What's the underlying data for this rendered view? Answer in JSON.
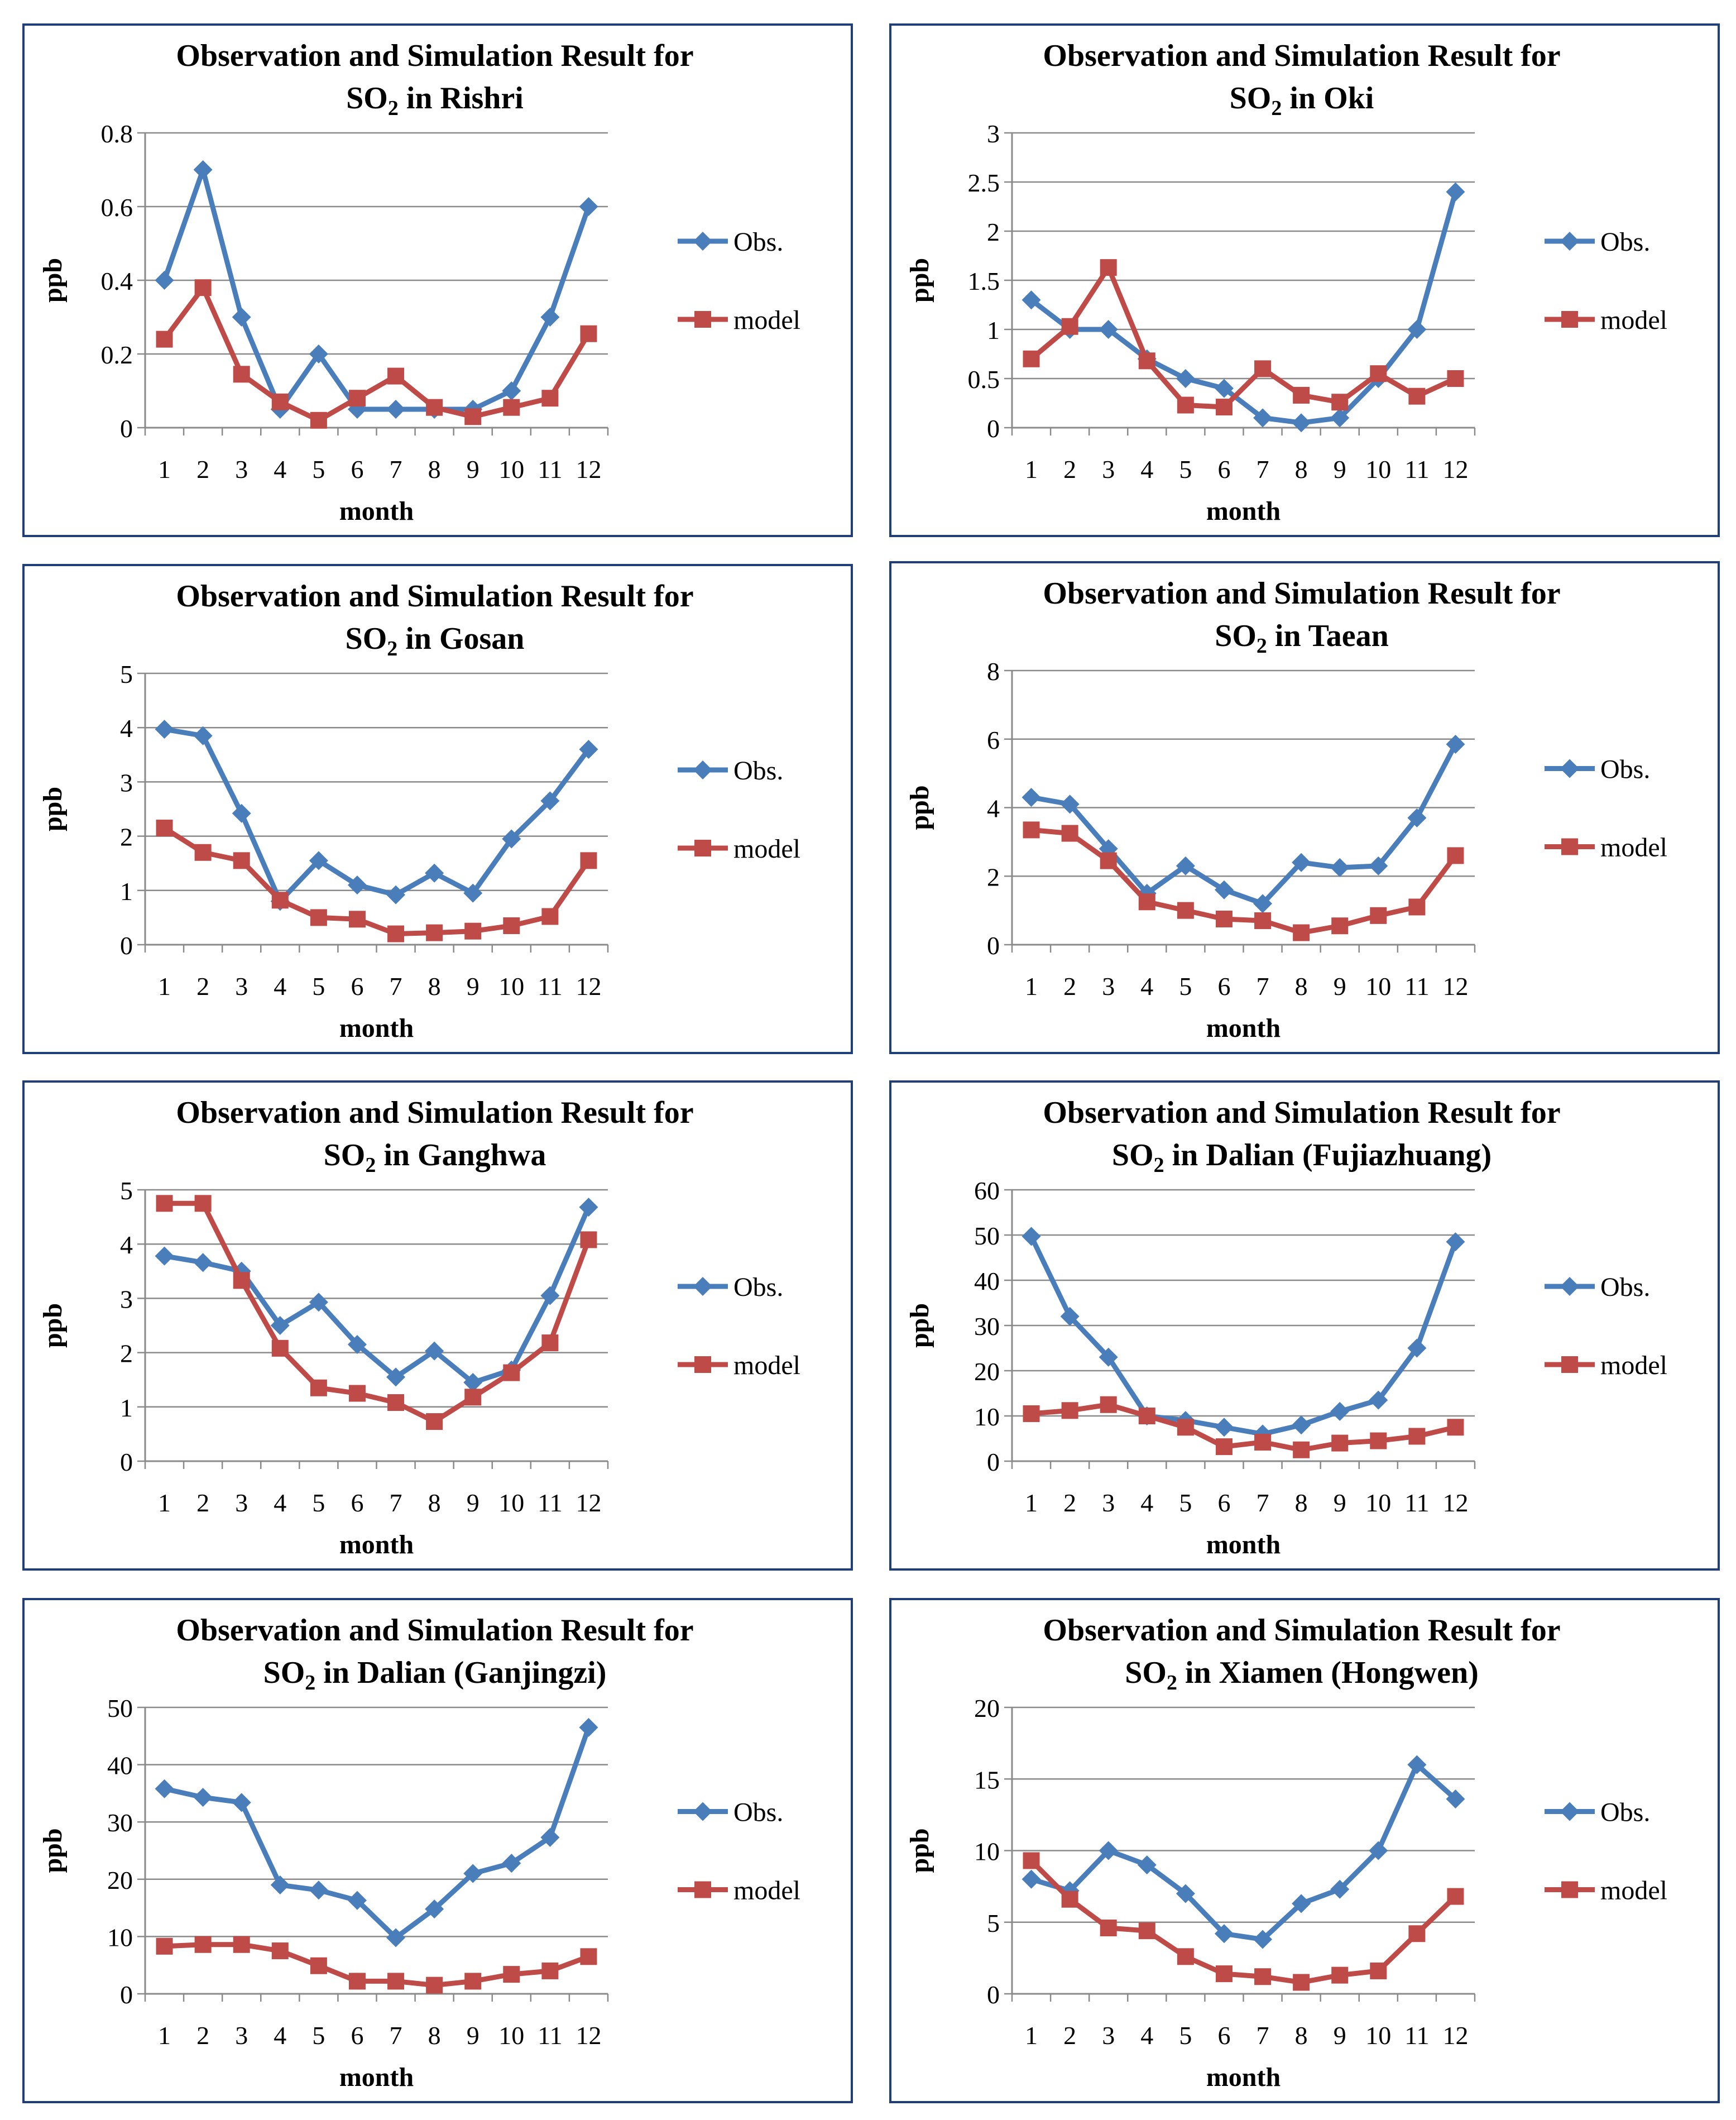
{
  "colors": {
    "obs": "#4a7ebb",
    "model": "#be4b48",
    "grid": "#8a8a8a",
    "axis": "#8a8a8a",
    "border": "#1f3e7a"
  },
  "chart_data": [
    {
      "type": "line",
      "title_line1": "Observation and Simulation Result for",
      "title_line2": {
        "pre": "SO",
        "sub": "2",
        "post": " in Rishri"
      },
      "xlabel": "month",
      "ylabel": "ppb",
      "categories": [
        "1",
        "2",
        "3",
        "4",
        "5",
        "6",
        "7",
        "8",
        "9",
        "10",
        "11",
        "12"
      ],
      "ylim": [
        0,
        0.8
      ],
      "yticks": [
        "0",
        "0.2",
        "0.4",
        "0.6",
        "0.8"
      ],
      "series": [
        {
          "name": "Obs.",
          "values": [
            0.4,
            0.7,
            0.3,
            0.05,
            0.2,
            0.05,
            0.05,
            0.05,
            0.05,
            0.1,
            0.3,
            0.6
          ]
        },
        {
          "name": "model",
          "values": [
            0.24,
            0.38,
            0.145,
            0.07,
            0.02,
            0.08,
            0.14,
            0.055,
            0.03,
            0.055,
            0.08,
            0.255
          ]
        }
      ]
    },
    {
      "type": "line",
      "title_line1": "Observation and Simulation Result for",
      "title_line2": {
        "pre": "SO",
        "sub": "2",
        "post": " in Oki"
      },
      "xlabel": "month",
      "ylabel": "ppb",
      "categories": [
        "1",
        "2",
        "3",
        "4",
        "5",
        "6",
        "7",
        "8",
        "9",
        "10",
        "11",
        "12"
      ],
      "ylim": [
        0,
        3
      ],
      "yticks": [
        "0",
        "0.5",
        "1",
        "1.5",
        "2",
        "2.5",
        "3"
      ],
      "series": [
        {
          "name": "Obs.",
          "values": [
            1.3,
            1.0,
            1.0,
            0.7,
            0.5,
            0.4,
            0.1,
            0.05,
            0.1,
            0.5,
            1.0,
            2.4
          ]
        },
        {
          "name": "model",
          "values": [
            0.7,
            1.03,
            1.63,
            0.68,
            0.23,
            0.21,
            0.6,
            0.33,
            0.26,
            0.55,
            0.32,
            0.5
          ]
        }
      ]
    },
    {
      "type": "line",
      "title_line1": "Observation and Simulation Result for",
      "title_line2": {
        "pre": "SO",
        "sub": "2",
        "post": " in Gosan"
      },
      "xlabel": "month",
      "ylabel": "ppb",
      "categories": [
        "1",
        "2",
        "3",
        "4",
        "5",
        "6",
        "7",
        "8",
        "9",
        "10",
        "11",
        "12"
      ],
      "ylim": [
        0,
        5
      ],
      "yticks": [
        "0",
        "1",
        "2",
        "3",
        "4",
        "5"
      ],
      "series": [
        {
          "name": "Obs.",
          "values": [
            3.97,
            3.85,
            2.42,
            0.8,
            1.55,
            1.1,
            0.92,
            1.32,
            0.95,
            1.95,
            2.65,
            3.6
          ]
        },
        {
          "name": "model",
          "values": [
            2.15,
            1.7,
            1.55,
            0.82,
            0.5,
            0.47,
            0.2,
            0.22,
            0.25,
            0.35,
            0.52,
            1.55
          ]
        }
      ]
    },
    {
      "type": "line",
      "title_line1": "Observation and Simulation Result for",
      "title_line2": {
        "pre": "SO",
        "sub": "2",
        "post": " in Taean"
      },
      "xlabel": "month",
      "ylabel": "ppb",
      "categories": [
        "1",
        "2",
        "3",
        "4",
        "5",
        "6",
        "7",
        "8",
        "9",
        "10",
        "11",
        "12"
      ],
      "ylim": [
        0,
        8
      ],
      "yticks": [
        "0",
        "2",
        "4",
        "6",
        "8"
      ],
      "series": [
        {
          "name": "Obs.",
          "values": [
            4.3,
            4.1,
            2.8,
            1.5,
            2.3,
            1.6,
            1.2,
            2.4,
            2.25,
            2.3,
            3.7,
            5.85
          ]
        },
        {
          "name": "model",
          "values": [
            3.35,
            3.25,
            2.45,
            1.25,
            1.0,
            0.75,
            0.7,
            0.35,
            0.55,
            0.85,
            1.1,
            2.6
          ]
        }
      ]
    },
    {
      "type": "line",
      "title_line1": "Observation and Simulation Result for",
      "title_line2": {
        "pre": "SO",
        "sub": "2",
        "post": " in Ganghwa"
      },
      "xlabel": "month",
      "ylabel": "ppb",
      "categories": [
        "1",
        "2",
        "3",
        "4",
        "5",
        "6",
        "7",
        "8",
        "9",
        "10",
        "11",
        "12"
      ],
      "ylim": [
        0,
        5
      ],
      "yticks": [
        "0",
        "1",
        "2",
        "3",
        "4",
        "5"
      ],
      "series": [
        {
          "name": "Obs.",
          "values": [
            3.78,
            3.66,
            3.5,
            2.5,
            2.93,
            2.15,
            1.55,
            2.03,
            1.45,
            1.68,
            3.05,
            4.68
          ]
        },
        {
          "name": "model",
          "values": [
            4.75,
            4.75,
            3.33,
            2.08,
            1.35,
            1.25,
            1.08,
            0.73,
            1.18,
            1.63,
            2.18,
            4.08
          ]
        }
      ]
    },
    {
      "type": "line",
      "title_line1": "Observation and Simulation Result for",
      "title_line2": {
        "pre": "SO",
        "sub": "2",
        "post": " in Dalian (Fujiazhuang)"
      },
      "xlabel": "month",
      "ylabel": "ppb",
      "categories": [
        "1",
        "2",
        "3",
        "4",
        "5",
        "6",
        "7",
        "8",
        "9",
        "10",
        "11",
        "12"
      ],
      "ylim": [
        0,
        60
      ],
      "yticks": [
        "0",
        "10",
        "20",
        "30",
        "40",
        "50",
        "60"
      ],
      "series": [
        {
          "name": "Obs.",
          "values": [
            49.7,
            32.0,
            23.0,
            10.0,
            9.0,
            7.5,
            6.0,
            8.0,
            11.0,
            13.5,
            25.0,
            48.5
          ]
        },
        {
          "name": "model",
          "values": [
            10.5,
            11.2,
            12.5,
            10.0,
            7.5,
            3.2,
            4.2,
            2.5,
            4.0,
            4.5,
            5.5,
            7.5
          ]
        }
      ]
    },
    {
      "type": "line",
      "title_line1": "Observation and Simulation Result for",
      "title_line2": {
        "pre": "SO",
        "sub": "2",
        "post": " in Dalian (Ganjingzi)"
      },
      "xlabel": "month",
      "ylabel": "ppb",
      "categories": [
        "1",
        "2",
        "3",
        "4",
        "5",
        "6",
        "7",
        "8",
        "9",
        "10",
        "11",
        "12"
      ],
      "ylim": [
        0,
        50
      ],
      "yticks": [
        "0",
        "10",
        "20",
        "30",
        "40",
        "50"
      ],
      "series": [
        {
          "name": "Obs.",
          "values": [
            35.8,
            34.3,
            33.4,
            19.0,
            18.1,
            16.3,
            9.8,
            14.8,
            21.0,
            22.8,
            27.3,
            46.5
          ]
        },
        {
          "name": "model",
          "values": [
            8.3,
            8.6,
            8.6,
            7.5,
            4.9,
            2.2,
            2.2,
            1.5,
            2.2,
            3.4,
            4.0,
            6.5
          ]
        }
      ]
    },
    {
      "type": "line",
      "title_line1": "Observation and Simulation Result for",
      "title_line2": {
        "pre": "SO",
        "sub": "2",
        "post": "  in Xiamen (Hongwen)"
      },
      "xlabel": "month",
      "ylabel": "ppb",
      "categories": [
        "1",
        "2",
        "3",
        "4",
        "5",
        "6",
        "7",
        "8",
        "9",
        "10",
        "11",
        "12"
      ],
      "ylim": [
        0,
        20
      ],
      "yticks": [
        "0",
        "5",
        "10",
        "15",
        "20"
      ],
      "series": [
        {
          "name": "Obs.",
          "values": [
            8.0,
            7.2,
            10.0,
            9.0,
            7.0,
            4.2,
            3.8,
            6.3,
            7.3,
            10.0,
            16.0,
            13.6
          ]
        },
        {
          "name": "model",
          "values": [
            9.3,
            6.6,
            4.6,
            4.4,
            2.6,
            1.4,
            1.2,
            0.8,
            1.3,
            1.6,
            4.2,
            6.8
          ]
        }
      ]
    }
  ]
}
